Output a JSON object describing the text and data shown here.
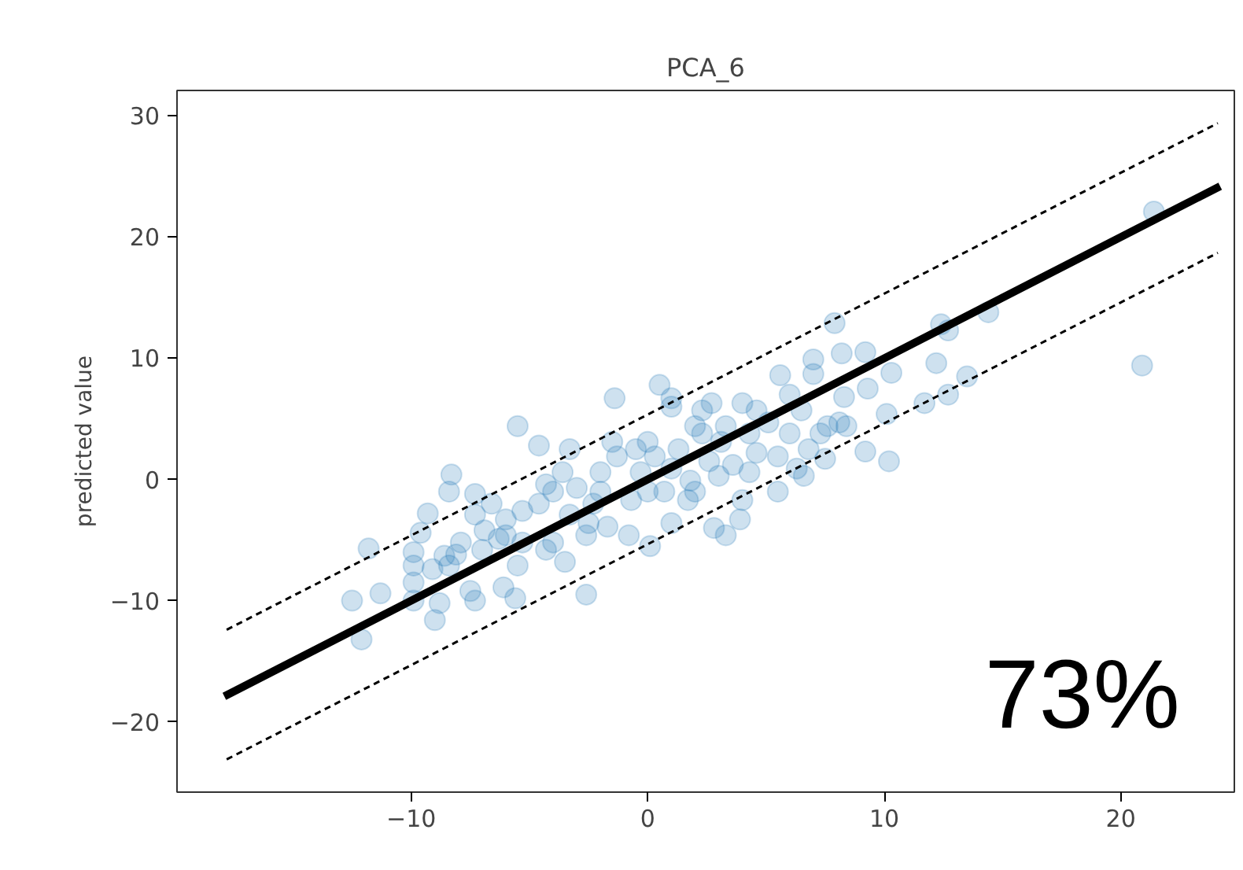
{
  "chart_data": {
    "type": "scatter",
    "title": "PCA_6",
    "ylabel": "predicted value",
    "xlim": [
      -19.9,
      24.8
    ],
    "ylim": [
      -25.8,
      32.1
    ],
    "xticks": [
      {
        "value": -10,
        "label": "−10"
      },
      0,
      10,
      20
    ],
    "yticks": [
      {
        "value": -20,
        "label": "−20"
      },
      {
        "value": -10,
        "label": "−10"
      },
      0,
      10,
      20,
      30
    ],
    "grid": false,
    "annotations": [
      "73%"
    ],
    "series": [
      {
        "color": "#1f77b4",
        "marker": "circle",
        "x": [
          21.4,
          20.9,
          14.4,
          12.4,
          12.7,
          12.2,
          13.5,
          12.7,
          11.7,
          10.3,
          10.1,
          10.2,
          9.2,
          9.2,
          8.2,
          7.9,
          9.3,
          8.3,
          8.1,
          8.4,
          7.0,
          7.0,
          5.6,
          7.5,
          6.6,
          6.8,
          5.5,
          6.5,
          6.0,
          4.0,
          4.0,
          3.9,
          3.3,
          2.8,
          2.7,
          2.3,
          1.0,
          1.0,
          0.5,
          -1.4,
          1.0,
          0.1,
          -0.8,
          -2.6,
          -3.5,
          -5.5,
          -4.6,
          -3.3,
          -8.3,
          -8.4,
          -7.3,
          -9.3,
          -9.6,
          -11.8,
          -9.9,
          -9.9,
          -11.3,
          -12.5,
          -12.1,
          -9.0,
          -8.8,
          -9.9,
          -7.3,
          -7.5,
          -5.6,
          -6.1,
          -5.5,
          -8.1,
          -8.6,
          -7.0,
          -6.9,
          -6.3,
          -6.0,
          -5.3,
          -4.6,
          -4.3,
          -4.0,
          -3.0,
          -2.3,
          -2.0,
          -1.7,
          -1.3,
          -0.7,
          -0.3,
          0.3,
          1.0,
          1.3,
          1.8,
          2.3,
          2.6,
          3.1,
          3.6,
          4.3,
          4.6,
          5.1,
          5.5,
          1.7,
          0.7,
          -2.6,
          -3.3,
          -2.5,
          -6.6,
          -6.0,
          -5.3,
          -4.0,
          -3.6,
          -1.5,
          -0.5,
          0.0,
          2.0,
          3.3,
          4.6,
          6.0,
          7.6,
          7.3,
          6.3,
          4.3,
          3.0,
          2.0,
          0.0,
          -2.0,
          -4.3,
          -7.3,
          -7.9,
          -9.1,
          -8.4,
          -9.9
        ],
        "values": [
          22.1,
          9.4,
          13.8,
          12.8,
          12.3,
          9.6,
          8.5,
          7.0,
          6.3,
          8.8,
          5.4,
          1.5,
          2.3,
          10.5,
          10.4,
          12.9,
          7.5,
          6.8,
          4.7,
          4.4,
          8.7,
          9.9,
          8.6,
          1.7,
          0.3,
          2.5,
          -1.0,
          5.7,
          3.8,
          6.3,
          -1.7,
          -3.3,
          -4.6,
          -4.0,
          6.3,
          5.7,
          6.0,
          6.7,
          7.8,
          6.7,
          -3.6,
          -5.5,
          -4.6,
          -9.5,
          -6.8,
          4.4,
          2.8,
          2.5,
          0.4,
          -1.0,
          -1.2,
          -2.8,
          -4.4,
          -5.7,
          -6.0,
          -7.1,
          -9.4,
          -10.0,
          -13.2,
          -11.6,
          -10.2,
          -8.5,
          -10.0,
          -9.2,
          -9.8,
          -8.9,
          -7.1,
          -6.2,
          -6.3,
          -5.8,
          -4.2,
          -4.9,
          -3.3,
          -2.6,
          -2.0,
          -5.8,
          -1.0,
          -0.7,
          -2.0,
          0.6,
          -3.9,
          1.9,
          -1.7,
          0.6,
          1.9,
          0.9,
          2.5,
          -0.1,
          3.8,
          1.5,
          3.1,
          1.2,
          3.8,
          2.2,
          4.7,
          1.9,
          -1.7,
          -1.0,
          -4.6,
          -2.9,
          -3.6,
          -2.0,
          -4.6,
          -5.2,
          -5.2,
          0.6,
          3.1,
          2.5,
          3.1,
          4.4,
          4.4,
          5.7,
          7.0,
          4.4,
          3.8,
          0.9,
          0.6,
          0.3,
          -1.0,
          -1.0,
          -1.0,
          -0.4,
          -2.9,
          -5.2,
          -7.4,
          -7.1,
          -10.0
        ]
      },
      {
        "type": "line",
        "color": "#000000",
        "line_style": "solid",
        "x": [
          -17.9,
          24.2
        ],
        "values": [
          -17.9,
          24.2
        ]
      },
      {
        "type": "line",
        "color": "#000000",
        "line_style": "dashed",
        "x": [
          -17.8,
          24.1
        ],
        "values": [
          -12.4,
          29.4
        ]
      },
      {
        "type": "line",
        "color": "#000000",
        "line_style": "dashed",
        "x": [
          -17.8,
          24.1
        ],
        "values": [
          -23.1,
          18.7
        ]
      }
    ]
  }
}
